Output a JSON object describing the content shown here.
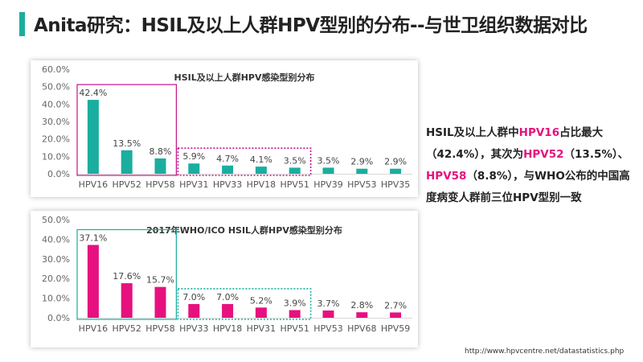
{
  "header": {
    "title": "Anita研究：HSIL及以上人群HPV型别的分布--与世卫组织数据对比",
    "accent_color": "#1aae9f"
  },
  "side_note": {
    "p1": "HSIL及以上人群中",
    "h1": "HPV16",
    "p2": "占比最大（42.4%），其次为",
    "h2": "HPV52",
    "p3": "（13.5%）、",
    "h3": "HPV58",
    "p4": "（8.8%），与WHO公布的中国高度病变人群前三位HPV型别一致",
    "highlight_color": "#e6117e"
  },
  "source": "http://www.hpvcentre.net/datastatistics.php",
  "chart_data": [
    {
      "type": "bar",
      "title": "HSIL及以上人群HPV感染型别分布",
      "categories": [
        "HPV16",
        "HPV52",
        "HPV58",
        "HPV31",
        "HPV33",
        "HPV18",
        "HPV51",
        "HPV39",
        "HPV53",
        "HPV35"
      ],
      "values": [
        42.4,
        13.5,
        8.8,
        5.9,
        4.7,
        4.1,
        3.5,
        3.5,
        2.9,
        2.9
      ],
      "value_labels": [
        "42.4%",
        "13.5%",
        "8.8%",
        "5.9%",
        "4.7%",
        "4.1%",
        "3.5%",
        "3.5%",
        "2.9%",
        "2.9%"
      ],
      "yticks": [
        "0.0%",
        "10.0%",
        "20.0%",
        "30.0%",
        "40.0%",
        "50.0%",
        "60.0%"
      ],
      "ylim": [
        0,
        60
      ],
      "xlabel": "",
      "ylabel": "",
      "color": "#1aae9f",
      "groups": [
        {
          "from": 0,
          "to": 2,
          "style": "solid",
          "color": "#c0148a"
        },
        {
          "from": 3,
          "to": 6,
          "style": "dotted",
          "color": "#c0148a"
        }
      ]
    },
    {
      "type": "bar",
      "title": "2017年WHO/ICO HSIL人群HPV感染型别分布",
      "categories": [
        "HPV16",
        "HPV52",
        "HPV58",
        "HPV33",
        "HPV18",
        "HPV31",
        "HPV51",
        "HPV53",
        "HPV68",
        "HPV59"
      ],
      "values": [
        37.1,
        17.6,
        15.7,
        7.0,
        7.0,
        5.2,
        3.9,
        3.7,
        2.8,
        2.7
      ],
      "value_labels": [
        "37.1%",
        "17.6%",
        "15.7%",
        "7.0%",
        "7.0%",
        "5.2%",
        "3.9%",
        "3.7%",
        "2.8%",
        "2.7%"
      ],
      "yticks": [
        "0.0%",
        "10.0%",
        "20.0%",
        "30.0%",
        "40.0%",
        "50.0%"
      ],
      "ylim": [
        0,
        50
      ],
      "xlabel": "",
      "ylabel": "",
      "color": "#e6117e",
      "groups": [
        {
          "from": 0,
          "to": 2,
          "style": "solid",
          "color": "#1aae9f"
        },
        {
          "from": 3,
          "to": 6,
          "style": "dotted",
          "color": "#1aae9f"
        }
      ]
    }
  ]
}
